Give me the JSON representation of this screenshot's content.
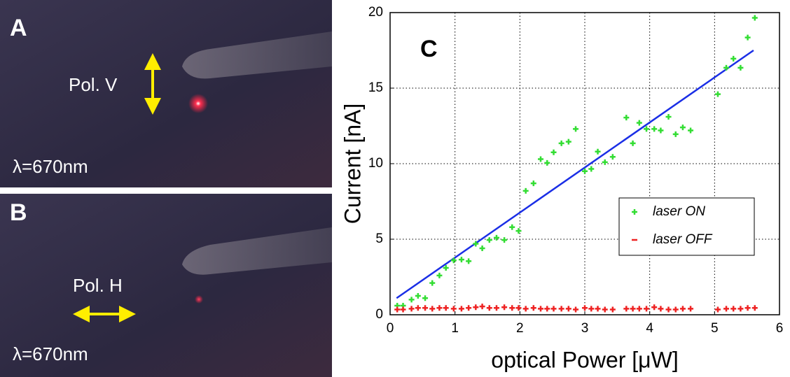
{
  "photos": [
    {
      "label": "A",
      "polarization": "Pol. V",
      "wavelength": "λ=670nm"
    },
    {
      "label": "B",
      "polarization": "Pol. H",
      "wavelength": "λ=670nm"
    }
  ],
  "chart_data": {
    "type": "scatter",
    "annotation": "C",
    "x_label": "optical Power [μW]",
    "y_label": "Current [nA]",
    "xlim": [
      0,
      6
    ],
    "ylim": [
      0,
      20
    ],
    "xticks": [
      0,
      1,
      2,
      3,
      4,
      5,
      6
    ],
    "yticks": [
      0,
      5,
      10,
      15,
      20
    ],
    "grid": true,
    "legend": "lower-right",
    "series": [
      {
        "name": "laser ON",
        "color": "#33dd33",
        "x": [
          0.11,
          0.2,
          0.33,
          0.43,
          0.54,
          0.65,
          0.76,
          0.86,
          0.98,
          1.1,
          1.21,
          1.32,
          1.42,
          1.53,
          1.64,
          1.76,
          1.88,
          1.98,
          2.09,
          2.21,
          2.32,
          2.42,
          2.52,
          2.64,
          2.75,
          2.86,
          3.0,
          3.1,
          3.2,
          3.31,
          3.43,
          3.64,
          3.74,
          3.84,
          3.95,
          4.07,
          4.17,
          4.29,
          4.4,
          4.51,
          4.63,
          5.05,
          5.18,
          5.29,
          5.4,
          5.51,
          5.62
        ],
        "values": [
          0.6,
          0.6,
          1.0,
          1.25,
          1.1,
          2.1,
          2.6,
          3.1,
          3.6,
          3.65,
          3.55,
          4.7,
          4.4,
          4.95,
          5.1,
          4.95,
          5.8,
          5.55,
          8.2,
          8.7,
          10.3,
          10.05,
          10.75,
          11.35,
          11.45,
          12.3,
          9.5,
          9.65,
          10.8,
          10.1,
          10.45,
          13.05,
          11.35,
          12.7,
          12.3,
          12.3,
          12.2,
          13.1,
          11.95,
          12.4,
          12.2,
          14.6,
          16.35,
          16.95,
          16.35,
          18.35,
          19.65
        ]
      },
      {
        "name": "laser OFF",
        "color": "#ee2222",
        "x": [
          0.11,
          0.2,
          0.33,
          0.43,
          0.54,
          0.65,
          0.76,
          0.86,
          0.98,
          1.1,
          1.21,
          1.32,
          1.42,
          1.53,
          1.64,
          1.76,
          1.88,
          1.98,
          2.09,
          2.21,
          2.32,
          2.42,
          2.52,
          2.64,
          2.75,
          2.86,
          3.0,
          3.1,
          3.2,
          3.31,
          3.43,
          3.64,
          3.74,
          3.84,
          3.95,
          4.07,
          4.17,
          4.29,
          4.4,
          4.51,
          4.63,
          5.05,
          5.18,
          5.29,
          5.4,
          5.51,
          5.62
        ],
        "values": [
          0.35,
          0.35,
          0.4,
          0.45,
          0.45,
          0.4,
          0.45,
          0.45,
          0.4,
          0.4,
          0.45,
          0.5,
          0.55,
          0.45,
          0.45,
          0.5,
          0.45,
          0.45,
          0.4,
          0.45,
          0.4,
          0.4,
          0.4,
          0.4,
          0.4,
          0.35,
          0.45,
          0.4,
          0.4,
          0.35,
          0.35,
          0.4,
          0.4,
          0.4,
          0.4,
          0.5,
          0.4,
          0.35,
          0.35,
          0.4,
          0.4,
          0.35,
          0.4,
          0.4,
          0.4,
          0.45,
          0.45
        ]
      }
    ],
    "fit": {
      "color": "#1a2ee6",
      "x": [
        0.1,
        5.6
      ],
      "values": [
        1.1,
        17.5
      ]
    }
  }
}
